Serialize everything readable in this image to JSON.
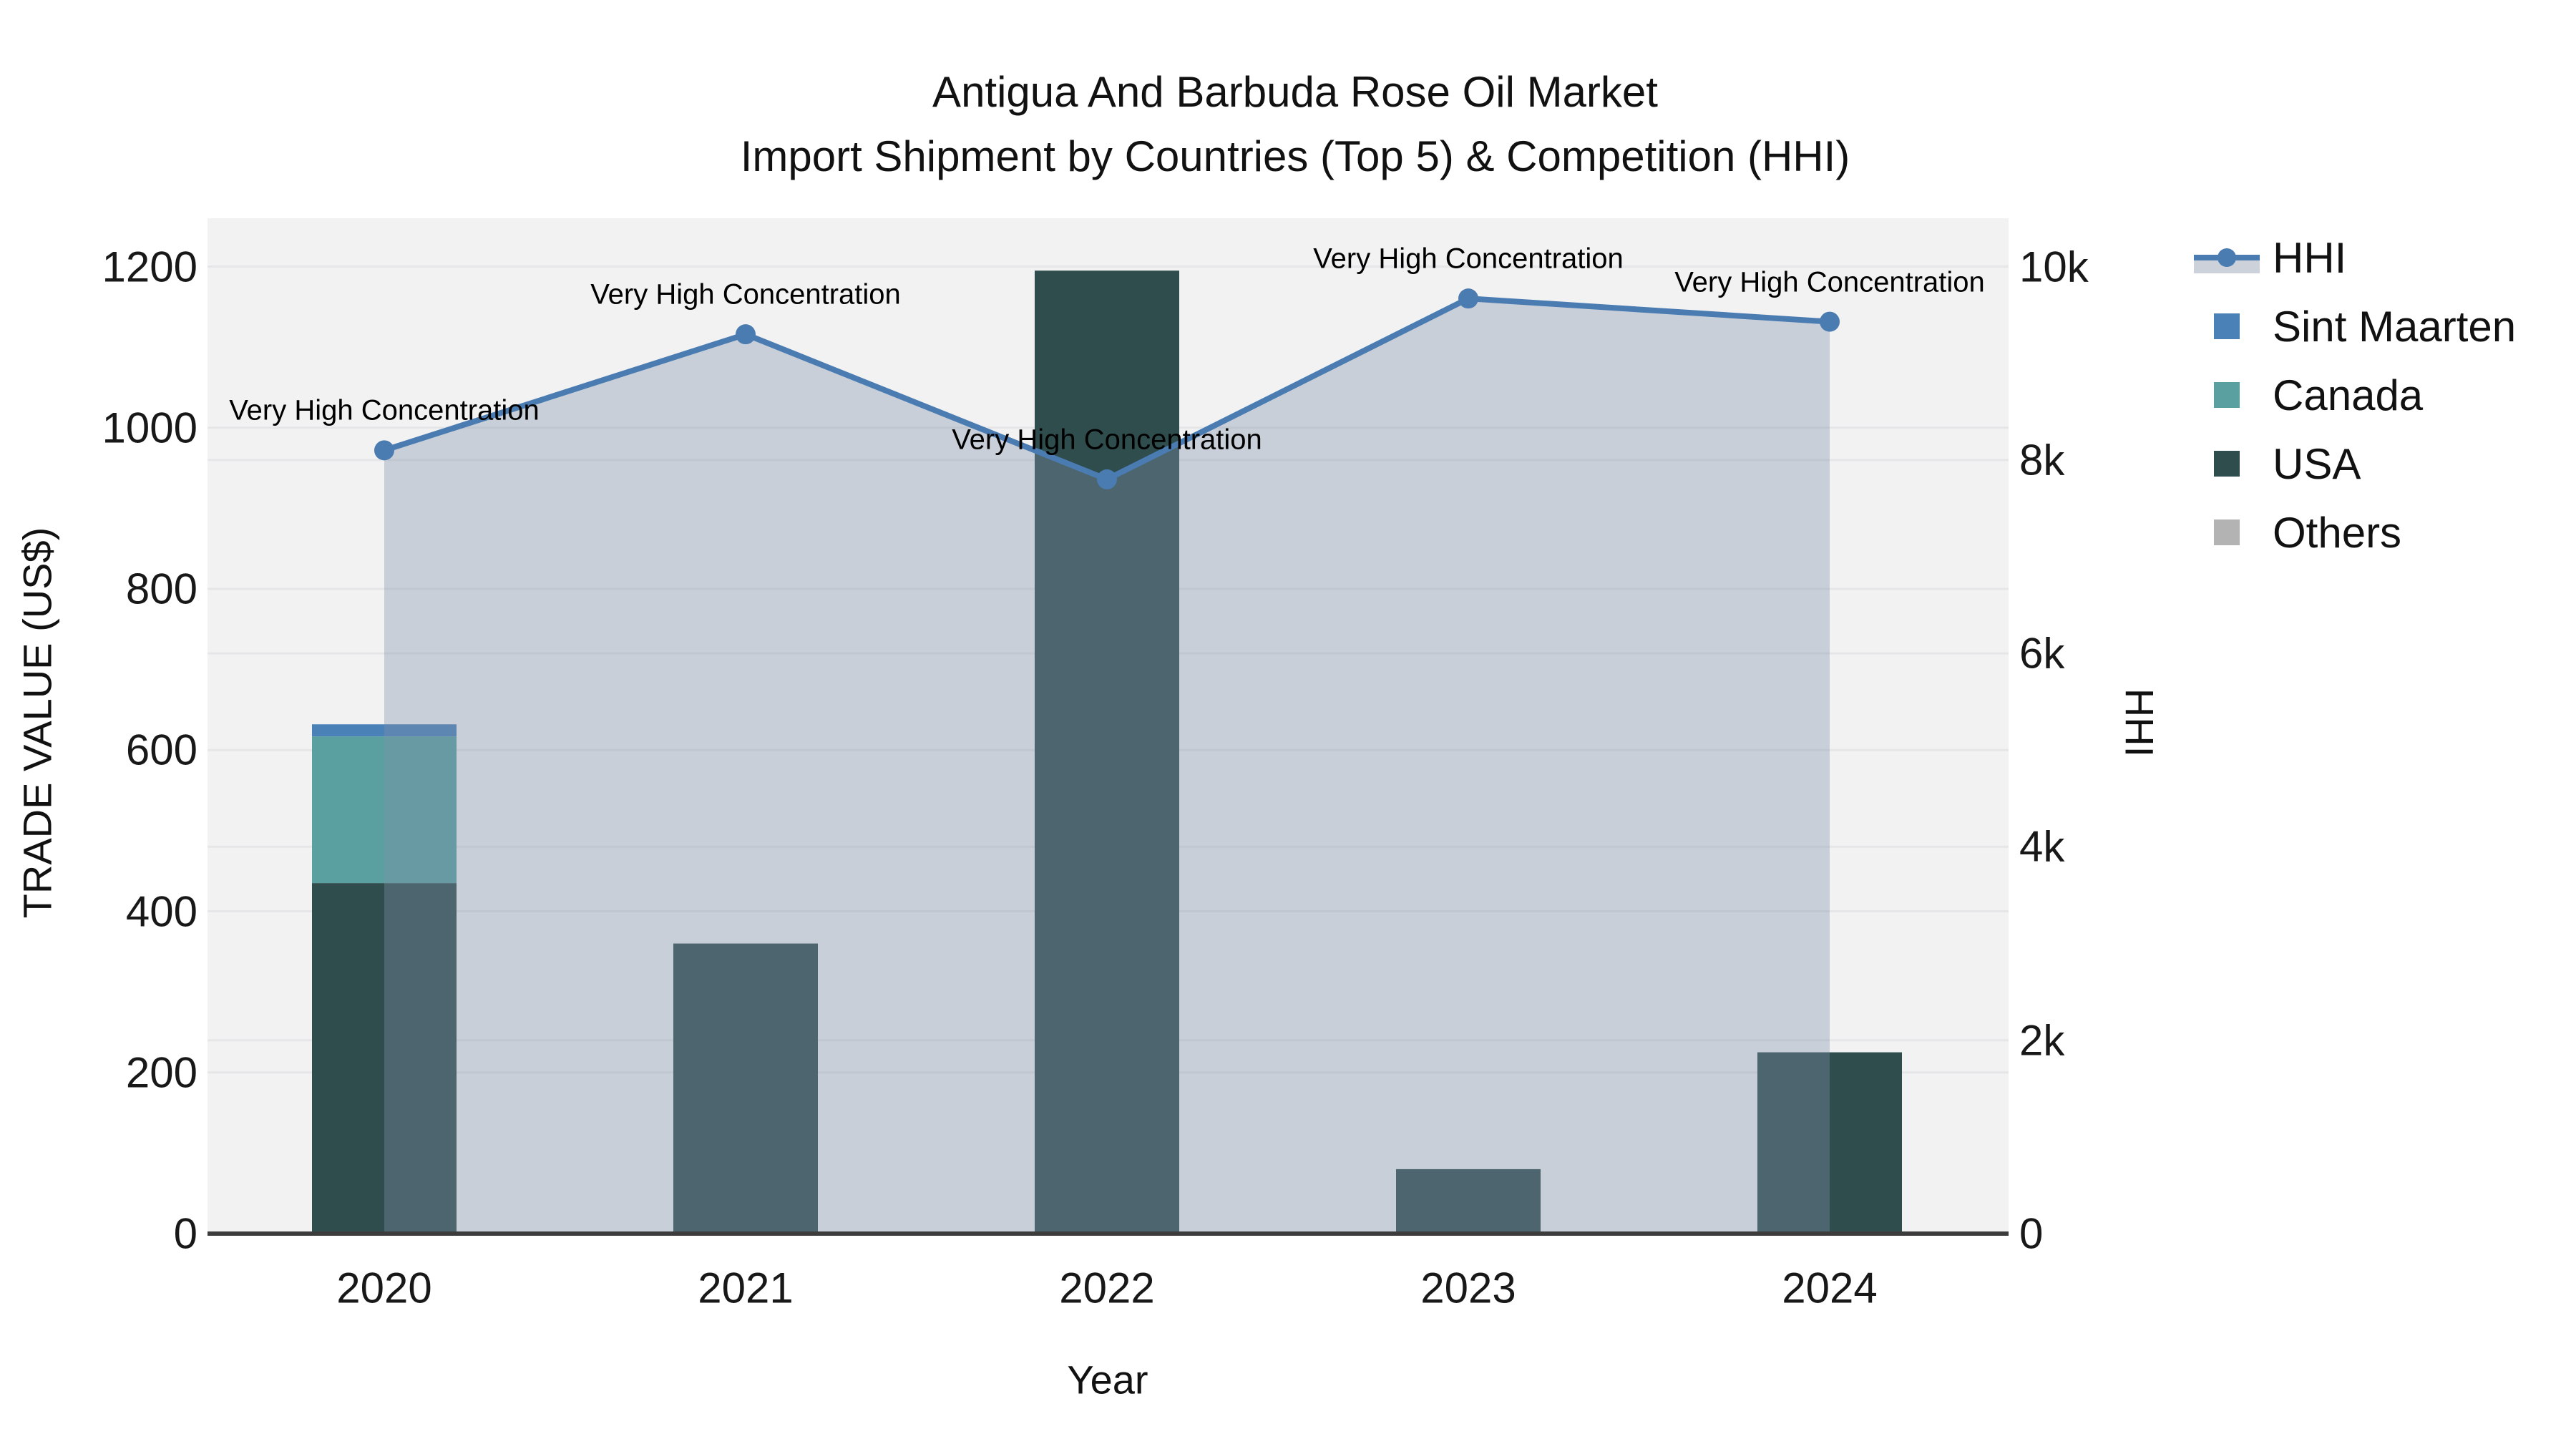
{
  "chart_data": {
    "type": "combo-stacked-bar-line-area",
    "title_line1": "Antigua And Barbuda Rose Oil Market",
    "title_line2": "Import Shipment by Countries (Top 5) & Competition (HHI)",
    "categories": [
      "2020",
      "2021",
      "2022",
      "2023",
      "2024"
    ],
    "bar_series": [
      {
        "name": "USA",
        "color": "#2f4d4d",
        "values": [
          435,
          360,
          1195,
          80,
          225
        ]
      },
      {
        "name": "Canada",
        "color": "#5aa0a0",
        "values": [
          182,
          0,
          0,
          0,
          0
        ]
      },
      {
        "name": "Sint Maarten",
        "color": "#4a82b8",
        "values": [
          15,
          0,
          0,
          0,
          0
        ]
      }
    ],
    "line_series": {
      "name": "HHI",
      "color": "#4a7cb2",
      "values": [
        8100,
        9300,
        7800,
        9670,
        9430
      ],
      "area_fill": "rgba(128,144,168,0.36)"
    },
    "annotations": [
      "Very High Concentration",
      "Very High Concentration",
      "Very High Concentration",
      "Very High Concentration",
      "Very High Concentration"
    ],
    "left_axis": {
      "label": "TRADE VALUE (US$)",
      "tick_values": [
        0,
        200,
        400,
        600,
        800,
        1000,
        1200
      ],
      "tick_labels": [
        "0",
        "200",
        "400",
        "600",
        "800",
        "1000",
        "1200"
      ],
      "range": [
        0,
        1260
      ]
    },
    "right_axis": {
      "label": "HHI",
      "tick_values": [
        0,
        2000,
        4000,
        6000,
        8000,
        10000
      ],
      "tick_labels": [
        "0",
        "2k",
        "4k",
        "6k",
        "8k",
        "10k"
      ],
      "range": [
        0,
        10500
      ]
    },
    "x_axis": {
      "label": "Year"
    },
    "legend": [
      {
        "label": "HHI",
        "type": "line-area",
        "color": "#4a7cb2"
      },
      {
        "label": "Sint Maarten",
        "type": "swatch",
        "color": "#4a82b8"
      },
      {
        "label": "Canada",
        "type": "swatch",
        "color": "#5aa0a0"
      },
      {
        "label": "USA",
        "type": "swatch",
        "color": "#2f4d4d"
      },
      {
        "label": "Others",
        "type": "swatch",
        "color": "#b3b3b3"
      }
    ],
    "style": {
      "plot_bg": "#f2f2f2",
      "grid_color": "#e6e6e8",
      "axis_line_color": "#3c3c3c"
    }
  }
}
